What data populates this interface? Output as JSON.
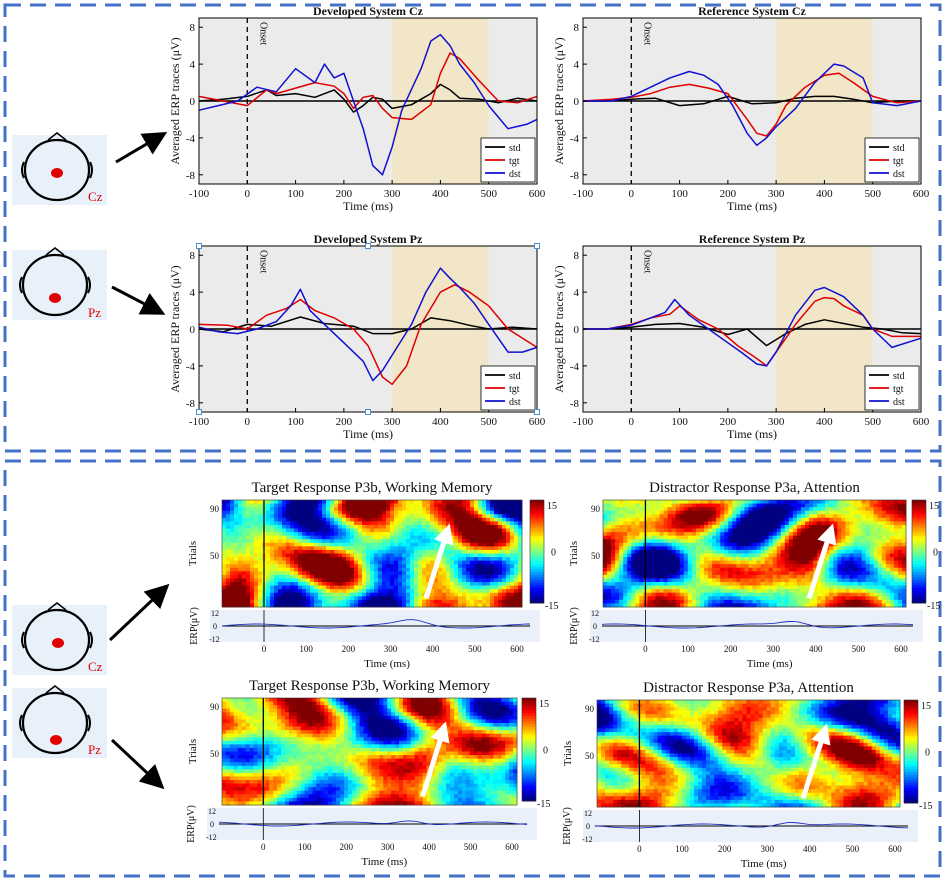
{
  "top": {
    "heads": [
      {
        "label": "Cz"
      },
      {
        "label": "Pz"
      }
    ],
    "charts": [
      {
        "type": "line",
        "title": "Developed System Cz",
        "xlabel": "Time (ms)",
        "ylabel": "Averaged ERP traces (μV)",
        "xlim": [
          -100,
          600
        ],
        "ylim": [
          -9,
          9
        ],
        "xticks": [
          -100,
          0,
          100,
          200,
          300,
          400,
          500,
          600
        ],
        "yticks": [
          -8,
          -4,
          0,
          4,
          8
        ],
        "onset_label": "Onset",
        "shade_grey": [
          300,
          500
        ],
        "shade_tan": [
          300,
          500
        ],
        "legend": [
          "std",
          "tgt",
          "dst"
        ],
        "series": [
          {
            "name": "std",
            "x": [
              -100,
              -50,
              0,
              40,
              60,
              100,
              140,
              180,
              200,
              220,
              240,
              260,
              280,
              300,
              340,
              380,
              400,
              420,
              440,
              480,
              520,
              560,
              600
            ],
            "y": [
              0,
              0.2,
              0.5,
              1.2,
              0.6,
              0.8,
              0.4,
              1.2,
              0.2,
              -1.2,
              -0.5,
              0.4,
              0.2,
              -0.8,
              -0.4,
              0.8,
              1.8,
              1.2,
              0.3,
              0.2,
              -0.2,
              0.3,
              0
            ]
          },
          {
            "name": "tgt",
            "x": [
              -100,
              -50,
              0,
              40,
              60,
              100,
              140,
              180,
              200,
              220,
              240,
              260,
              280,
              300,
              340,
              380,
              400,
              420,
              440,
              480,
              520,
              560,
              600
            ],
            "y": [
              0.5,
              0,
              -0.5,
              1.2,
              0.8,
              1.4,
              2,
              1.6,
              0.8,
              -0.8,
              0.4,
              0.6,
              -0.8,
              -1.8,
              -2,
              -0.4,
              3,
              5.2,
              4.6,
              2.2,
              0,
              -0.2,
              0.5
            ]
          },
          {
            "name": "dst",
            "x": [
              -100,
              -60,
              -20,
              20,
              60,
              100,
              140,
              160,
              180,
              200,
              220,
              240,
              260,
              280,
              300,
              320,
              360,
              380,
              400,
              420,
              440,
              470,
              500,
              540,
              580,
              600
            ],
            "y": [
              -1,
              -0.5,
              0,
              1.5,
              1,
              3.5,
              2,
              4,
              2.5,
              3,
              0,
              -3,
              -7,
              -8,
              -5,
              -1,
              3.5,
              6.5,
              7.2,
              6,
              4,
              2,
              -0.5,
              -3,
              -2.5,
              -2
            ]
          }
        ]
      },
      {
        "type": "line",
        "title": "Reference System Cz",
        "xlabel": "Time (ms)",
        "ylabel": "Averaged ERP traces (μV)",
        "xlim": [
          -100,
          600
        ],
        "ylim": [
          -9,
          9
        ],
        "xticks": [
          -100,
          0,
          100,
          200,
          300,
          400,
          500,
          600
        ],
        "yticks": [
          -8,
          -4,
          0,
          4,
          8
        ],
        "onset_label": "Onset",
        "shade_grey": [
          300,
          500
        ],
        "shade_tan": [
          300,
          500
        ],
        "legend": [
          "std",
          "tgt",
          "dst"
        ],
        "series": [
          {
            "name": "std",
            "x": [
              -100,
              -50,
              0,
              50,
              100,
              150,
              200,
              250,
              300,
              340,
              380,
              420,
              460,
              500,
              550,
              600
            ],
            "y": [
              0,
              0,
              0.2,
              0.3,
              -0.5,
              -0.3,
              0.5,
              -0.3,
              -0.2,
              0.3,
              0.5,
              0.5,
              0.2,
              -0.2,
              0,
              0
            ]
          },
          {
            "name": "tgt",
            "x": [
              -100,
              -40,
              0,
              40,
              80,
              120,
              160,
              200,
              240,
              260,
              280,
              300,
              320,
              360,
              400,
              430,
              460,
              500,
              550,
              600
            ],
            "y": [
              0,
              0.2,
              0.4,
              0.8,
              1.5,
              1.8,
              1.4,
              0.8,
              -2,
              -3.5,
              -3.8,
              -2.5,
              -0.5,
              1.5,
              2.8,
              3,
              2,
              0.5,
              -0.2,
              0
            ]
          },
          {
            "name": "dst",
            "x": [
              -100,
              -40,
              0,
              40,
              80,
              120,
              150,
              180,
              210,
              240,
              260,
              280,
              300,
              340,
              380,
              420,
              440,
              480,
              500,
              550,
              600
            ],
            "y": [
              0,
              0,
              0.5,
              1.5,
              2.5,
              3.2,
              2.8,
              1.8,
              -0.5,
              -3.5,
              -4.8,
              -4,
              -2.8,
              -0.8,
              2,
              4,
              3.8,
              2.5,
              -0.2,
              -0.5,
              0
            ]
          }
        ]
      },
      {
        "type": "line",
        "title": "Developed System Pz",
        "xlabel": "Time (ms)",
        "ylabel": "Averaged ERP traces (μV)",
        "xlim": [
          -100,
          600
        ],
        "ylim": [
          -9,
          9
        ],
        "xticks": [
          -100,
          0,
          100,
          200,
          300,
          400,
          500,
          600
        ],
        "yticks": [
          -8,
          -4,
          0,
          4,
          8
        ],
        "onset_label": "Onset",
        "shade_grey": [
          300,
          500
        ],
        "shade_tan": [
          300,
          500
        ],
        "legend": [
          "std",
          "tgt",
          "dst"
        ],
        "series": [
          {
            "name": "std",
            "x": [
              -100,
              -50,
              0,
              50,
              110,
              160,
              220,
              260,
              300,
              340,
              380,
              420,
              460,
              500,
              550,
              600
            ],
            "y": [
              0,
              -0.3,
              0.5,
              0.3,
              1.3,
              0.6,
              0.3,
              -0.5,
              -0.5,
              0,
              1.2,
              0.9,
              0.4,
              0,
              0.2,
              0
            ]
          },
          {
            "name": "tgt",
            "x": [
              -100,
              -40,
              0,
              40,
              80,
              110,
              140,
              180,
              220,
              250,
              280,
              300,
              330,
              360,
              400,
              430,
              460,
              500,
              540,
              600
            ],
            "y": [
              0.5,
              0.4,
              0,
              1.5,
              2.2,
              3.2,
              2,
              1.2,
              0,
              -1.8,
              -5.2,
              -6,
              -4,
              0.5,
              4,
              4.8,
              4,
              2.5,
              0,
              -2
            ]
          },
          {
            "name": "dst",
            "x": [
              -100,
              -60,
              -20,
              20,
              60,
              90,
              110,
              130,
              160,
              200,
              240,
              260,
              280,
              310,
              340,
              370,
              400,
              420,
              440,
              470,
              500,
              540,
              570,
              600
            ],
            "y": [
              0.2,
              -0.3,
              -0.5,
              0,
              0.8,
              2.5,
              4.3,
              2,
              0.5,
              -1.5,
              -3.5,
              -5.6,
              -4.5,
              -2,
              0.5,
              4,
              6.6,
              5.5,
              4.5,
              2.8,
              0.5,
              -2.5,
              -2.5,
              -2
            ]
          }
        ]
      },
      {
        "type": "line",
        "title": "Reference System Pz",
        "xlabel": "Time (ms)",
        "ylabel": "Averaged ERP traces (μV)",
        "xlim": [
          -100,
          600
        ],
        "ylim": [
          -9,
          9
        ],
        "xticks": [
          -100,
          0,
          100,
          200,
          300,
          400,
          500,
          600
        ],
        "yticks": [
          -8,
          -4,
          0,
          4,
          8
        ],
        "onset_label": "Onset",
        "shade_grey": [
          300,
          500
        ],
        "shade_tan": [
          300,
          500
        ],
        "legend": [
          "std",
          "tgt",
          "dst"
        ],
        "series": [
          {
            "name": "std",
            "x": [
              -100,
              -50,
              0,
              50,
              100,
              150,
              200,
              240,
              280,
              320,
              360,
              400,
              440,
              480,
              520,
              560,
              600
            ],
            "y": [
              0,
              0,
              0.2,
              0.5,
              0.6,
              0.2,
              -0.6,
              0,
              -1.8,
              -0.5,
              0.5,
              1,
              0.6,
              0.2,
              0,
              -0.4,
              -0.5
            ]
          },
          {
            "name": "tgt",
            "x": [
              -100,
              -50,
              0,
              40,
              80,
              100,
              140,
              180,
              220,
              260,
              280,
              300,
              340,
              380,
              400,
              420,
              440,
              480,
              500,
              540,
              600
            ],
            "y": [
              0,
              0,
              0.5,
              1.2,
              1.6,
              2.5,
              1,
              0,
              -1.8,
              -3.2,
              -4,
              -2.5,
              0.5,
              3,
              3.4,
              3.3,
              2.5,
              1.5,
              0,
              -0.8,
              -0.8
            ]
          },
          {
            "name": "dst",
            "x": [
              -100,
              -50,
              0,
              40,
              70,
              90,
              120,
              160,
              200,
              230,
              260,
              280,
              300,
              340,
              380,
              400,
              420,
              440,
              480,
              500,
              540,
              600
            ],
            "y": [
              0,
              0,
              0.4,
              1.2,
              1.8,
              3.2,
              1.5,
              0,
              -1.5,
              -2.6,
              -3.8,
              -4,
              -2.5,
              1.5,
              4.2,
              4.5,
              4,
              3.5,
              1.5,
              0,
              -2,
              -1
            ]
          }
        ]
      }
    ]
  },
  "bottom": {
    "heads": [
      {
        "label": "Cz"
      },
      {
        "label": "Pz"
      }
    ],
    "charts": [
      {
        "type": "heatmap",
        "title": "Target Response P3b, Working Memory",
        "ylabel": "Trials",
        "yticks": [
          90,
          50
        ],
        "colorbar_ticks": [
          15,
          0,
          -15
        ],
        "clim": [
          -15,
          15
        ],
        "erp_label": "ERP(μV)",
        "erp_ticks": [
          12,
          0,
          -12
        ],
        "xlabel": "Time (ms)",
        "xticks": [
          0,
          100,
          200,
          300,
          400,
          500,
          600
        ],
        "seed": 11
      },
      {
        "type": "heatmap",
        "title": "Distractor  Response P3a, Attention",
        "ylabel": "Trials",
        "yticks": [
          90,
          50
        ],
        "colorbar_ticks": [
          15,
          0,
          -15
        ],
        "clim": [
          -15,
          15
        ],
        "erp_label": "ERP(μV)",
        "erp_ticks": [
          12,
          0,
          -12
        ],
        "xlabel": "Time (ms)",
        "xticks": [
          0,
          100,
          200,
          300,
          400,
          500,
          600
        ],
        "seed": 23
      },
      {
        "type": "heatmap",
        "title": "Target Response P3b, Working Memory",
        "ylabel": "Trials",
        "yticks": [
          90,
          50
        ],
        "colorbar_ticks": [
          15,
          0,
          -15
        ],
        "clim": [
          -15,
          15
        ],
        "erp_label": "ERP(μV)",
        "erp_ticks": [
          12,
          0,
          -12
        ],
        "xlabel": "Time (ms)",
        "xticks": [
          0,
          100,
          200,
          300,
          400,
          500,
          600
        ],
        "seed": 37
      },
      {
        "type": "heatmap",
        "title": "Distractor Response P3a, Attention",
        "ylabel": "Trials",
        "yticks": [
          90,
          50
        ],
        "colorbar_ticks": [
          15,
          0,
          -15
        ],
        "clim": [
          -15,
          15
        ],
        "erp_label": "ERP(μV)",
        "erp_ticks": [
          12,
          0,
          -12
        ],
        "xlabel": "Time (ms)",
        "xticks": [
          0,
          100,
          200,
          300,
          400,
          500,
          600
        ],
        "seed": 53
      }
    ]
  },
  "colors": {
    "frame": "#4472c4",
    "std": "#000000",
    "tgt": "#e00000",
    "dst": "#1010d0",
    "shade_grey": "#ebebeb",
    "shade_tan": "#f2e6c8",
    "electrode": "#e00000",
    "head_bg": "#e8f0fa"
  }
}
